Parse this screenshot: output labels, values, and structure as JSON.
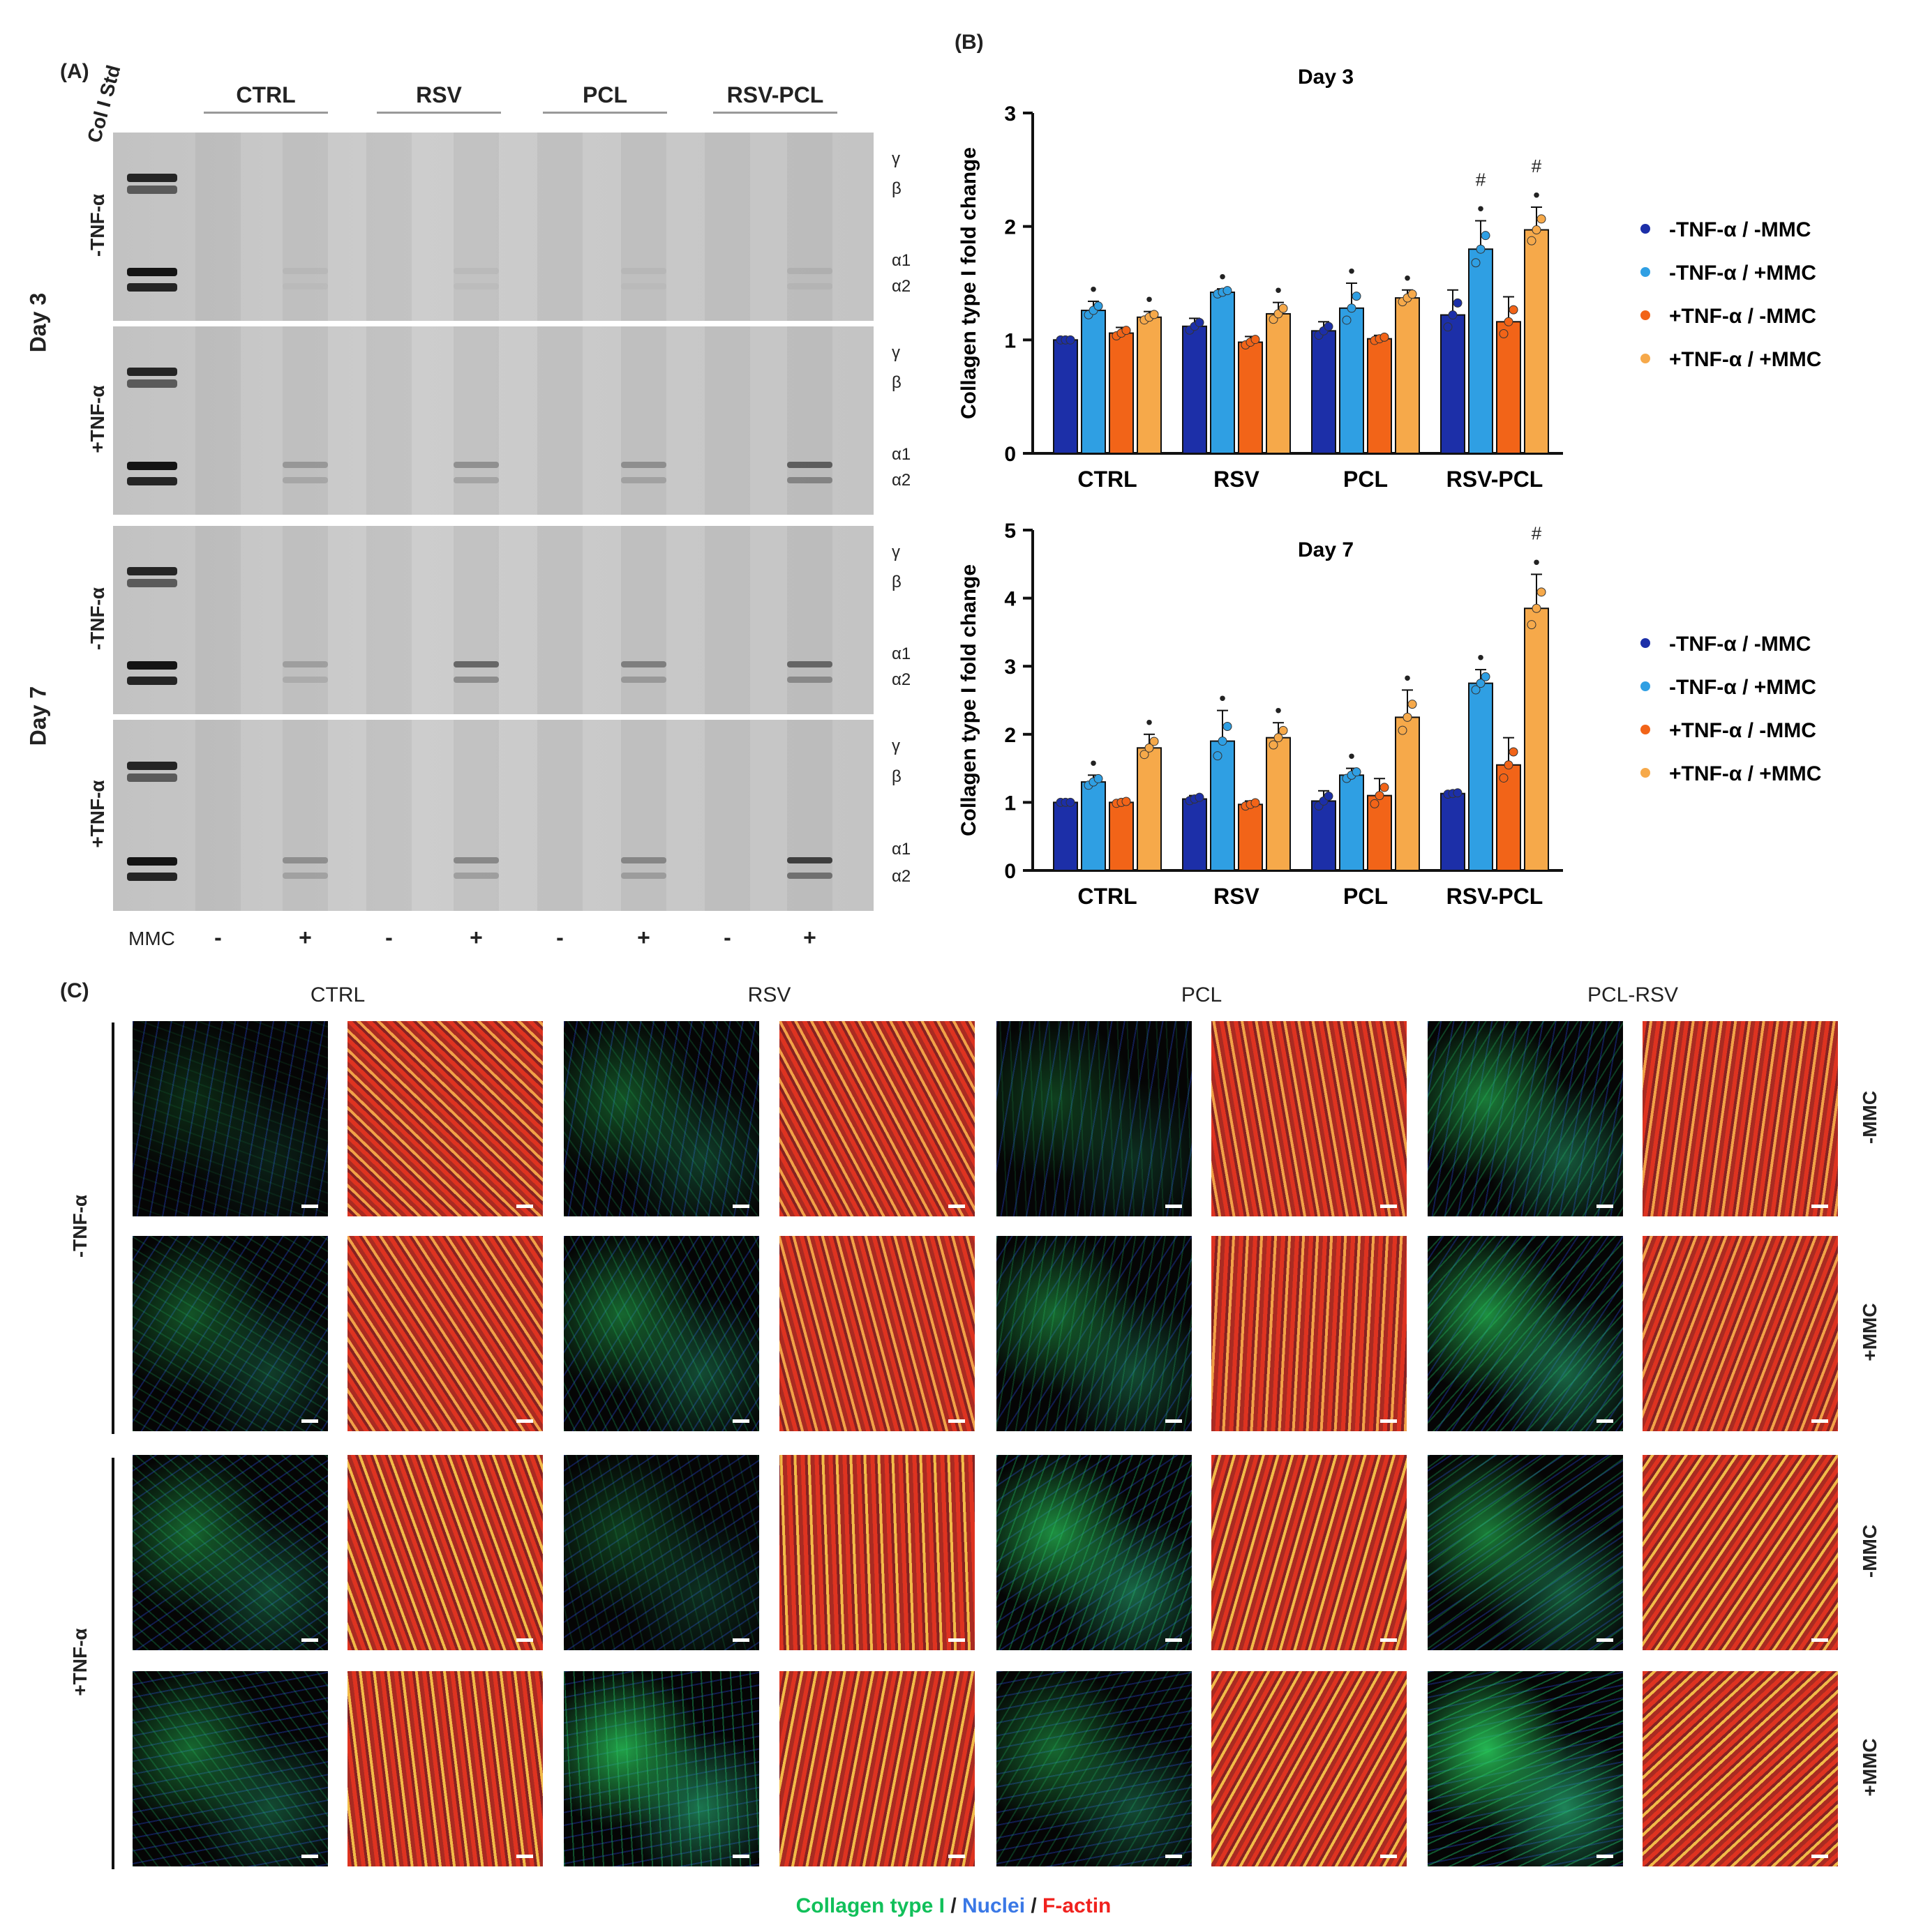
{
  "panel_labels": {
    "A": "(A)",
    "B": "(B)",
    "C": "(C)"
  },
  "gel": {
    "std_label": "Col I Std",
    "groups": [
      "CTRL",
      "RSV",
      "PCL",
      "RSV-PCL"
    ],
    "days": [
      "Day 3",
      "Day 7"
    ],
    "rows": [
      "-TNF-α",
      "+TNF-α",
      "-TNF-α",
      "+TNF-α"
    ],
    "band_labels": {
      "gamma": "γ",
      "beta": "β",
      "a1": "α1",
      "a2": "α2"
    },
    "mmc_label": "MMC",
    "mmc_signs": [
      "-",
      "+",
      "-",
      "+",
      "-",
      "+",
      "-",
      "+"
    ]
  },
  "legend": {
    "entries": [
      "-TNF-α / -MMC",
      "-TNF-α / +MMC",
      "+TNF-α / -MMC",
      "+TNF-α / +MMC"
    ],
    "colors": [
      "#1c2fa8",
      "#2f9fe3",
      "#f26418",
      "#f6a94a"
    ]
  },
  "chart_data": [
    {
      "type": "bar",
      "title": "Day 3",
      "ylabel": "Collagen type I fold change",
      "categories": [
        "CTRL",
        "RSV",
        "PCL",
        "RSV-PCL"
      ],
      "ylim": [
        0,
        3
      ],
      "yticks": [
        "0",
        "1",
        "2",
        "3"
      ],
      "series": [
        {
          "name": "-TNF-α / -MMC",
          "values": [
            1.0,
            1.12,
            1.08,
            1.22
          ],
          "errors": [
            0.0,
            0.07,
            0.08,
            0.22
          ]
        },
        {
          "name": "-TNF-α / +MMC",
          "values": [
            1.26,
            1.42,
            1.28,
            1.8
          ],
          "errors": [
            0.08,
            0.03,
            0.22,
            0.25
          ]
        },
        {
          "name": "+TNF-α / -MMC",
          "values": [
            1.06,
            0.98,
            1.01,
            1.16
          ],
          "errors": [
            0.05,
            0.05,
            0.03,
            0.22
          ]
        },
        {
          "name": "+TNF-α / +MMC",
          "values": [
            1.2,
            1.23,
            1.37,
            1.97
          ],
          "errors": [
            0.05,
            0.1,
            0.07,
            0.2
          ]
        }
      ],
      "significance": [
        {
          "category": 0,
          "series": 1,
          "marks": "*"
        },
        {
          "category": 0,
          "series": 3,
          "marks": "*"
        },
        {
          "category": 1,
          "series": 1,
          "marks": "*"
        },
        {
          "category": 1,
          "series": 3,
          "marks": "*"
        },
        {
          "category": 2,
          "series": 1,
          "marks": "*"
        },
        {
          "category": 2,
          "series": 3,
          "marks": "*"
        },
        {
          "category": 3,
          "series": 1,
          "marks": "*#"
        },
        {
          "category": 3,
          "series": 3,
          "marks": "*#"
        }
      ]
    },
    {
      "type": "bar",
      "title": "Day 7",
      "ylabel": "Collagen type I fold change",
      "categories": [
        "CTRL",
        "RSV",
        "PCL",
        "RSV-PCL"
      ],
      "ylim": [
        0,
        5
      ],
      "yticks": [
        "0",
        "1",
        "2",
        "3",
        "4",
        "5"
      ],
      "series": [
        {
          "name": "-TNF-α / -MMC",
          "values": [
            1.0,
            1.05,
            1.02,
            1.13
          ],
          "errors": [
            0.0,
            0.05,
            0.15,
            0.02
          ]
        },
        {
          "name": "-TNF-α / +MMC",
          "values": [
            1.3,
            1.9,
            1.4,
            2.75
          ],
          "errors": [
            0.1,
            0.45,
            0.1,
            0.2
          ]
        },
        {
          "name": "+TNF-α / -MMC",
          "values": [
            1.0,
            0.97,
            1.1,
            1.55
          ],
          "errors": [
            0.03,
            0.05,
            0.25,
            0.4
          ]
        },
        {
          "name": "+TNF-α / +MMC",
          "values": [
            1.8,
            1.95,
            2.25,
            3.85
          ],
          "errors": [
            0.2,
            0.22,
            0.4,
            0.5
          ]
        }
      ],
      "significance": [
        {
          "category": 0,
          "series": 1,
          "marks": "*"
        },
        {
          "category": 0,
          "series": 3,
          "marks": "*"
        },
        {
          "category": 1,
          "series": 1,
          "marks": "*"
        },
        {
          "category": 1,
          "series": 3,
          "marks": "*"
        },
        {
          "category": 2,
          "series": 1,
          "marks": "*"
        },
        {
          "category": 2,
          "series": 3,
          "marks": "*"
        },
        {
          "category": 3,
          "series": 1,
          "marks": "*"
        },
        {
          "category": 3,
          "series": 3,
          "marks": "*#"
        }
      ]
    }
  ],
  "micrographs": {
    "groups": [
      "CTRL",
      "RSV",
      "PCL",
      "PCL-RSV"
    ],
    "tnf_labels": [
      "-TNF-α",
      "+TNF-α"
    ],
    "mmc_labels": [
      "-MMC",
      "+MMC",
      "-MMC",
      "+MMC"
    ],
    "caption_collagen": "Collagen type I",
    "caption_sep": " / ",
    "caption_nuclei": "Nuclei",
    "caption_factin": "F-actin",
    "caption_colors": {
      "collagen": "#11c05a",
      "nuclei": "#3a78e6",
      "factin": "#f0221e"
    }
  }
}
